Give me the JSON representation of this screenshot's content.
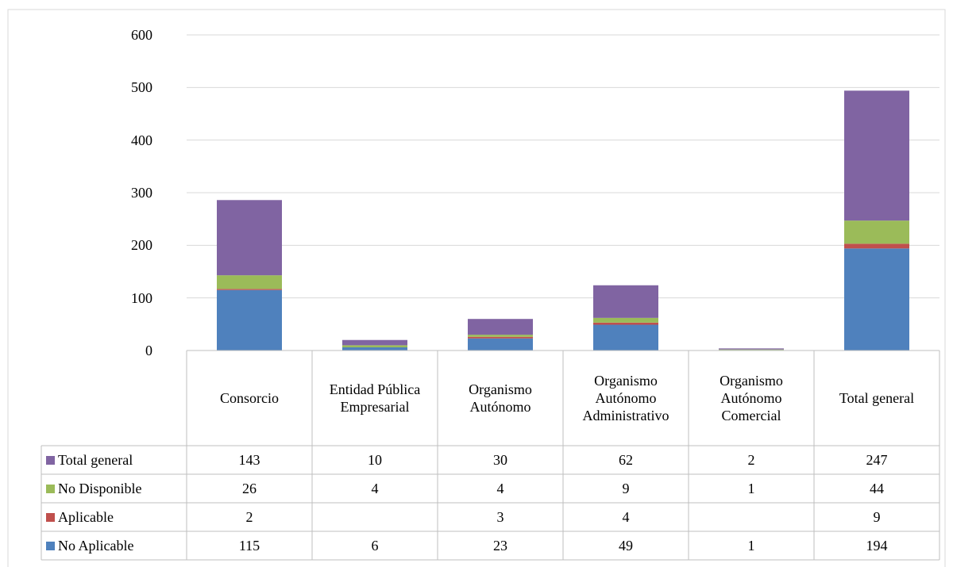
{
  "chart_data": {
    "type": "bar",
    "stacked": true,
    "categories": [
      "Consorcio",
      "Entidad Pública Empresarial",
      "Organismo Autónomo",
      "Organismo Autónomo Administrativo",
      "Organismo Autónomo Comercial",
      "Total general"
    ],
    "series": [
      {
        "name": "No Aplicable",
        "color": "#4f81bd",
        "values": [
          115,
          6,
          23,
          49,
          1,
          194
        ]
      },
      {
        "name": "Aplicable",
        "color": "#c0504d",
        "values": [
          2,
          null,
          3,
          4,
          null,
          9
        ]
      },
      {
        "name": "No Disponible",
        "color": "#9bbb59",
        "values": [
          26,
          4,
          4,
          9,
          1,
          44
        ]
      },
      {
        "name": "Total general",
        "color": "#8064a2",
        "values": [
          143,
          10,
          30,
          62,
          2,
          247
        ]
      }
    ],
    "ylim": [
      0,
      600
    ],
    "yticks": [
      0,
      100,
      200,
      300,
      400,
      500,
      600
    ],
    "grid": true,
    "data_table": true
  }
}
